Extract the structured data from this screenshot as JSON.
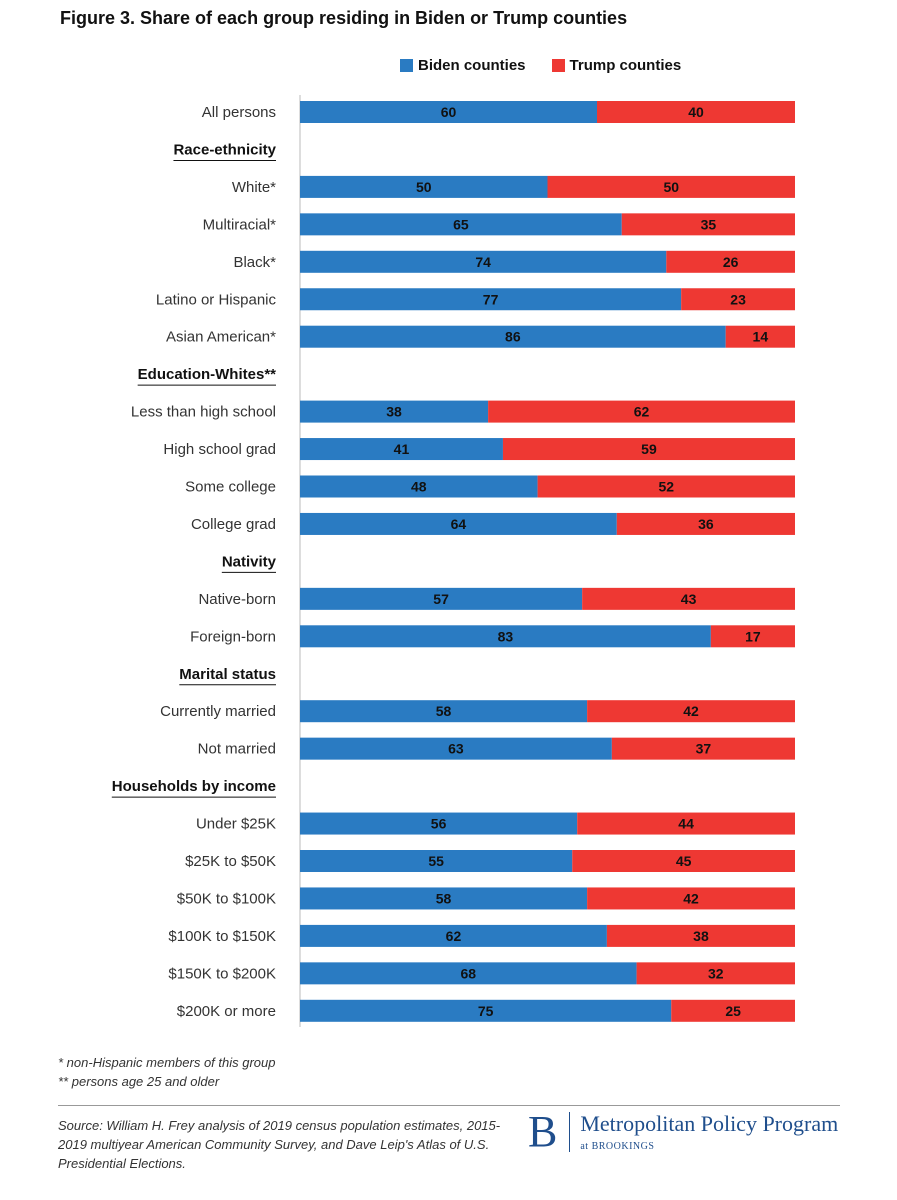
{
  "title": "Figure 3. Share of each group residing in Biden or Trump counties",
  "legend": {
    "biden": "Biden counties",
    "trump": "Trump counties"
  },
  "colors": {
    "biden": "#2a7bc2",
    "trump": "#ee3833"
  },
  "chart_data": {
    "type": "bar",
    "orientation": "horizontal",
    "stacked": true,
    "xlim": [
      0,
      100
    ],
    "legend_position": "top",
    "rows": [
      {
        "kind": "item",
        "label": "All persons",
        "biden": 60,
        "trump": 40
      },
      {
        "kind": "header",
        "label": "Race-ethnicity"
      },
      {
        "kind": "item",
        "label": "White*",
        "biden": 50,
        "trump": 50
      },
      {
        "kind": "item",
        "label": "Multiracial*",
        "biden": 65,
        "trump": 35
      },
      {
        "kind": "item",
        "label": "Black*",
        "biden": 74,
        "trump": 26
      },
      {
        "kind": "item",
        "label": "Latino or Hispanic",
        "biden": 77,
        "trump": 23
      },
      {
        "kind": "item",
        "label": "Asian American*",
        "biden": 86,
        "trump": 14
      },
      {
        "kind": "header",
        "label": "Education-Whites**"
      },
      {
        "kind": "item",
        "label": "Less than high school",
        "biden": 38,
        "trump": 62
      },
      {
        "kind": "item",
        "label": "High school grad",
        "biden": 41,
        "trump": 59
      },
      {
        "kind": "item",
        "label": "Some college",
        "biden": 48,
        "trump": 52
      },
      {
        "kind": "item",
        "label": "College grad",
        "biden": 64,
        "trump": 36
      },
      {
        "kind": "header",
        "label": "Nativity"
      },
      {
        "kind": "item",
        "label": "Native-born",
        "biden": 57,
        "trump": 43
      },
      {
        "kind": "item",
        "label": "Foreign-born",
        "biden": 83,
        "trump": 17
      },
      {
        "kind": "header",
        "label": "Marital status"
      },
      {
        "kind": "item",
        "label": "Currently married",
        "biden": 58,
        "trump": 42
      },
      {
        "kind": "item",
        "label": "Not married",
        "biden": 63,
        "trump": 37
      },
      {
        "kind": "header",
        "label": "Households by income"
      },
      {
        "kind": "item",
        "label": "Under $25K",
        "biden": 56,
        "trump": 44
      },
      {
        "kind": "item",
        "label": "$25K to $50K",
        "biden": 55,
        "trump": 45
      },
      {
        "kind": "item",
        "label": "$50K to $100K",
        "biden": 58,
        "trump": 42
      },
      {
        "kind": "item",
        "label": "$100K to $150K",
        "biden": 62,
        "trump": 38
      },
      {
        "kind": "item",
        "label": "$150K to $200K",
        "biden": 68,
        "trump": 32
      },
      {
        "kind": "item",
        "label": "$200K or more",
        "biden": 75,
        "trump": 25
      }
    ]
  },
  "notes": [
    "* non-Hispanic members of this group",
    "** persons age 25 and older"
  ],
  "source": "Source: William H. Frey analysis of 2019 census population estimates, 2015-2019 multiyear American Community Survey, and Dave Leip's Atlas of U.S. Presidential Elections.",
  "brand": {
    "letter": "B",
    "name": "Metropolitan Policy Program",
    "sub": "at BROOKINGS"
  }
}
